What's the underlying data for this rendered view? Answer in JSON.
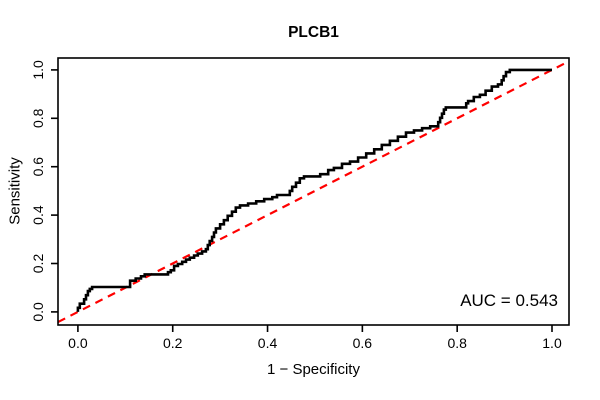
{
  "title": "PLCB1",
  "axes": {
    "x": {
      "label": "1 − Specificity",
      "tick_labels": [
        "0.0",
        "0.2",
        "0.4",
        "0.6",
        "0.8",
        "1.0"
      ],
      "tick_values": [
        0,
        0.2,
        0.4,
        0.6,
        0.8,
        1.0
      ]
    },
    "y": {
      "label": "Sensitivity",
      "tick_labels": [
        "0.0",
        "0.2",
        "0.4",
        "0.6",
        "0.8",
        "1.0"
      ],
      "tick_values": [
        0,
        0.2,
        0.4,
        0.6,
        0.8,
        1.0
      ]
    }
  },
  "annotations": {
    "auc_text": "AUC = 0.543"
  },
  "colors": {
    "curve": "#000000",
    "diagonal": "#ff0000",
    "axis": "#000000",
    "background": "#ffffff"
  },
  "chart_data": {
    "type": "line",
    "subtype": "roc-step-curve",
    "title": "PLCB1",
    "xlabel": "1 − Specificity",
    "ylabel": "Sensitivity",
    "xlim": [
      0,
      1
    ],
    "ylim": [
      0,
      1
    ],
    "grid": false,
    "legend": "none",
    "auc": 0.543,
    "series": [
      {
        "name": "ROC curve",
        "style": "step",
        "color": "#000000",
        "points": [
          [
            0.0,
            0.0
          ],
          [
            0.0,
            0.017
          ],
          [
            0.004,
            0.017
          ],
          [
            0.004,
            0.034
          ],
          [
            0.013,
            0.034
          ],
          [
            0.017,
            0.052
          ],
          [
            0.021,
            0.069
          ],
          [
            0.025,
            0.086
          ],
          [
            0.03,
            0.095
          ],
          [
            0.038,
            0.103
          ],
          [
            0.046,
            0.103
          ],
          [
            0.11,
            0.103
          ],
          [
            0.11,
            0.121
          ],
          [
            0.122,
            0.129
          ],
          [
            0.133,
            0.138
          ],
          [
            0.141,
            0.147
          ],
          [
            0.15,
            0.155
          ],
          [
            0.19,
            0.155
          ],
          [
            0.196,
            0.164
          ],
          [
            0.203,
            0.172
          ],
          [
            0.211,
            0.19
          ],
          [
            0.22,
            0.198
          ],
          [
            0.228,
            0.207
          ],
          [
            0.236,
            0.216
          ],
          [
            0.245,
            0.224
          ],
          [
            0.253,
            0.233
          ],
          [
            0.262,
            0.241
          ],
          [
            0.27,
            0.25
          ],
          [
            0.274,
            0.259
          ],
          [
            0.278,
            0.276
          ],
          [
            0.283,
            0.293
          ],
          [
            0.287,
            0.31
          ],
          [
            0.291,
            0.328
          ],
          [
            0.3,
            0.345
          ],
          [
            0.308,
            0.362
          ],
          [
            0.316,
            0.379
          ],
          [
            0.325,
            0.397
          ],
          [
            0.333,
            0.414
          ],
          [
            0.342,
            0.431
          ],
          [
            0.359,
            0.44
          ],
          [
            0.376,
            0.448
          ],
          [
            0.393,
            0.457
          ],
          [
            0.41,
            0.466
          ],
          [
            0.42,
            0.474
          ],
          [
            0.447,
            0.483
          ],
          [
            0.452,
            0.5
          ],
          [
            0.46,
            0.517
          ],
          [
            0.468,
            0.534
          ],
          [
            0.477,
            0.552
          ],
          [
            0.511,
            0.56
          ],
          [
            0.528,
            0.569
          ],
          [
            0.54,
            0.586
          ],
          [
            0.557,
            0.595
          ],
          [
            0.574,
            0.612
          ],
          [
            0.591,
            0.621
          ],
          [
            0.608,
            0.638
          ],
          [
            0.625,
            0.655
          ],
          [
            0.641,
            0.672
          ],
          [
            0.658,
            0.69
          ],
          [
            0.675,
            0.707
          ],
          [
            0.692,
            0.724
          ],
          [
            0.709,
            0.741
          ],
          [
            0.726,
            0.75
          ],
          [
            0.743,
            0.759
          ],
          [
            0.76,
            0.767
          ],
          [
            0.764,
            0.784
          ],
          [
            0.768,
            0.802
          ],
          [
            0.772,
            0.819
          ],
          [
            0.776,
            0.836
          ],
          [
            0.785,
            0.845
          ],
          [
            0.819,
            0.845
          ],
          [
            0.823,
            0.862
          ],
          [
            0.835,
            0.871
          ],
          [
            0.848,
            0.888
          ],
          [
            0.86,
            0.897
          ],
          [
            0.873,
            0.914
          ],
          [
            0.886,
            0.931
          ],
          [
            0.894,
            0.94
          ],
          [
            0.898,
            0.957
          ],
          [
            0.903,
            0.974
          ],
          [
            0.911,
            0.991
          ],
          [
            0.919,
            1.0
          ],
          [
            1.0,
            1.0
          ]
        ]
      },
      {
        "name": "Chance diagonal",
        "style": "dashed",
        "color": "#ff0000",
        "points": [
          [
            0,
            0
          ],
          [
            1,
            1
          ]
        ]
      }
    ]
  }
}
